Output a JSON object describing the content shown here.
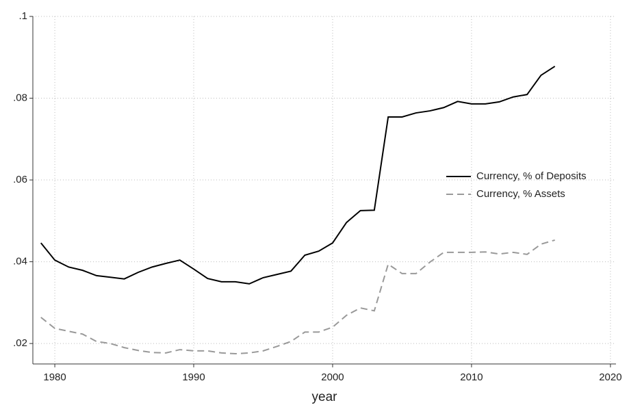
{
  "chart_data": {
    "type": "line",
    "x_label": "year",
    "x": [
      1979,
      1980,
      1981,
      1982,
      1983,
      1984,
      1985,
      1986,
      1987,
      1988,
      1989,
      1990,
      1991,
      1992,
      1993,
      1994,
      1995,
      1996,
      1997,
      1998,
      1999,
      2000,
      2001,
      2002,
      2003,
      2004,
      2005,
      2006,
      2007,
      2008,
      2009,
      2010,
      2011,
      2012,
      2013,
      2014,
      2015,
      2016
    ],
    "series": [
      {
        "name": "Currency, % of Deposits",
        "color": "#000000",
        "dashed": false,
        "values": [
          0.0446,
          0.0404,
          0.0387,
          0.0379,
          0.0366,
          0.0362,
          0.0358,
          0.0374,
          0.0387,
          0.0396,
          0.0404,
          0.0382,
          0.0359,
          0.0351,
          0.0351,
          0.0346,
          0.0361,
          0.0369,
          0.0377,
          0.0416,
          0.0426,
          0.0446,
          0.0496,
          0.0525,
          0.0526,
          0.0754,
          0.0754,
          0.0764,
          0.0769,
          0.0777,
          0.0792,
          0.0786,
          0.0786,
          0.0791,
          0.0803,
          0.0809,
          0.0856,
          0.0878
        ]
      },
      {
        "name": "Currency, % Assets",
        "color": "#999999",
        "dashed": true,
        "values": [
          0.0264,
          0.0237,
          0.023,
          0.0223,
          0.0205,
          0.02,
          0.019,
          0.0183,
          0.0178,
          0.0177,
          0.0185,
          0.0182,
          0.0182,
          0.0177,
          0.0175,
          0.0177,
          0.0182,
          0.0193,
          0.0205,
          0.0228,
          0.0228,
          0.024,
          0.0269,
          0.0287,
          0.028,
          0.0394,
          0.0371,
          0.0371,
          0.0399,
          0.0423,
          0.0423,
          0.0423,
          0.0424,
          0.0419,
          0.0423,
          0.0418,
          0.0443,
          0.0453
        ]
      }
    ],
    "xlim": [
      1978.42,
      2020.4
    ],
    "xticks": [
      1980,
      1990,
      2000,
      2010,
      2020
    ],
    "ylim": [
      0.015,
      0.1
    ],
    "yticks": [
      {
        "value": 0.02,
        "label": ".02"
      },
      {
        "value": 0.04,
        "label": ".04"
      },
      {
        "value": 0.06,
        "label": ".06"
      },
      {
        "value": 0.08,
        "label": ".08"
      },
      {
        "value": 0.1,
        "label": ".1"
      }
    ],
    "grid": true,
    "legend": "right"
  }
}
